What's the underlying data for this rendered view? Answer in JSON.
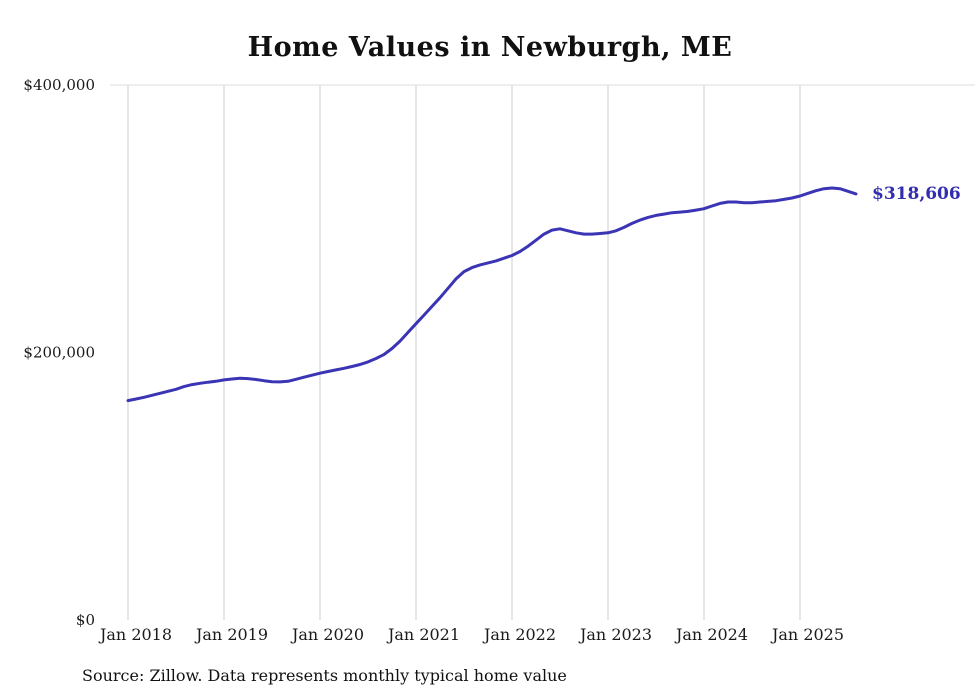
{
  "chart_data": {
    "type": "line",
    "title": "Home Values in Newburgh, ME",
    "source_note": "Source: Zillow. Data represents monthly typical home value",
    "series_name": "Typical home value",
    "start_month": "2018-01",
    "values": [
      164000,
      165200,
      166500,
      168000,
      169500,
      171000,
      172500,
      174500,
      176000,
      177000,
      177800,
      178500,
      179500,
      180200,
      180800,
      180500,
      179800,
      178900,
      178200,
      178000,
      178500,
      180000,
      181500,
      183000,
      184500,
      185800,
      187000,
      188200,
      189500,
      191000,
      193000,
      195500,
      198500,
      203000,
      208500,
      215000,
      221500,
      228000,
      234500,
      241000,
      248000,
      255000,
      260500,
      263500,
      265500,
      267000,
      268500,
      270500,
      272500,
      275500,
      279500,
      284000,
      288500,
      291500,
      292500,
      291000,
      289500,
      288500,
      288500,
      289000,
      289500,
      291000,
      293500,
      296500,
      299000,
      301000,
      302500,
      303500,
      304500,
      305000,
      305500,
      306500,
      307500,
      309500,
      311500,
      312500,
      312500,
      312000,
      312000,
      312500,
      313000,
      313500,
      314500,
      315500,
      317000,
      319000,
      321000,
      322500,
      323000,
      322500,
      320500,
      318606
    ],
    "end_label": "$318,606",
    "x_ticks": [
      "Jan 2018",
      "Jan 2019",
      "Jan 2020",
      "Jan 2021",
      "Jan 2022",
      "Jan 2023",
      "Jan 2024",
      "Jan 2025"
    ],
    "y_ticks": [
      "$0",
      "$200,000",
      "$400,000"
    ],
    "y_tick_values": [
      0,
      200000,
      400000
    ],
    "ylim": [
      0,
      400000
    ],
    "grid": "vertical-only",
    "line_color": "#3b35b5",
    "end_label_color": "#322db0",
    "grid_color": "#cccccc",
    "text_color": "#1a1a1a"
  }
}
